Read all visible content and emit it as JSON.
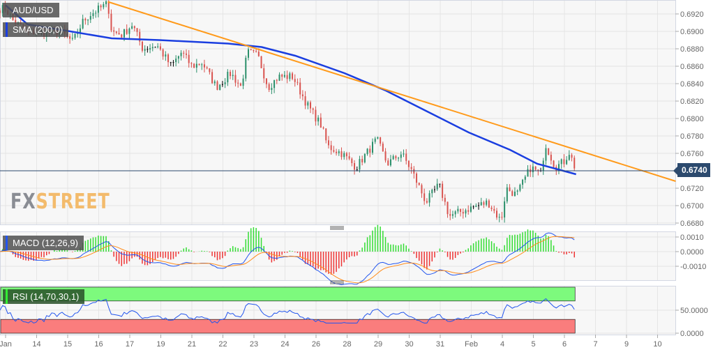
{
  "symbol": "AUD/USD",
  "indicators": {
    "sma": "SMA (200,0)",
    "macd": "MACD (12,26,9)",
    "rsi": "RSI (14,70,30,1)"
  },
  "logo": {
    "fx": "FX",
    "street": "STREET"
  },
  "current_price": "0.6740",
  "colors": {
    "up": "#2a8f6a",
    "down": "#d9534f",
    "sma": "#1a3ee0",
    "trendline": "#ff9a1a",
    "macd": "#2255ee",
    "signal": "#ff8c1a",
    "hist_up": "#33dd33",
    "hist_down": "#ee3333",
    "rsi": "#2255ee",
    "overbought": "#7dfa7d",
    "oversold": "#fa7d7d",
    "price_line": "#2c4a6e"
  },
  "chart_data": {
    "type": "candlestick",
    "x_ticks": [
      "Jan",
      "14",
      "15",
      "16",
      "17",
      "19",
      "21",
      "22",
      "23",
      "24",
      "26",
      "28",
      "29",
      "30",
      "31",
      "Feb",
      "4",
      "5",
      "6",
      "7",
      "9",
      "10"
    ],
    "x_tick_dates": [
      "Jan 13",
      "Jan 14",
      "Jan 15",
      "Jan 16",
      "Jan 17",
      "Jan 19",
      "Jan 21",
      "Jan 22",
      "Jan 23",
      "Jan 24",
      "Jan 26",
      "Jan 28",
      "Jan 29",
      "Jan 30",
      "Jan 31",
      "Feb 1",
      "Feb 4",
      "Feb 5",
      "Feb 6",
      "Feb 7",
      "Feb 9",
      "Feb 10"
    ],
    "price_axis": {
      "ticks": [
        "0.6920",
        "0.6900",
        "0.6880",
        "0.6860",
        "0.6840",
        "0.6820",
        "0.6800",
        "0.6780",
        "0.6760",
        "0.6740",
        "0.6720",
        "0.6700",
        "0.6680"
      ],
      "range": [
        0.6675,
        0.6936
      ]
    },
    "price_path": [
      [
        "Jan 13 00:00",
        0.6926
      ],
      [
        "Jan 13 06:00",
        0.6912
      ],
      [
        "Jan 13 17:00",
        0.69
      ],
      [
        "Jan 14 04:00",
        0.6898
      ],
      [
        "Jan 14 18:00",
        0.69
      ],
      [
        "Jan 15 04:00",
        0.6888
      ],
      [
        "Jan 15 12:00",
        0.6912
      ],
      [
        "Jan 15 18:00",
        0.692
      ],
      [
        "Jan 16 07:00",
        0.6932
      ],
      [
        "Jan 16 10:00",
        0.69
      ],
      [
        "Jan 16 18:00",
        0.6896
      ],
      [
        "Jan 17 02:00",
        0.6908
      ],
      [
        "Jan 17 10:00",
        0.688
      ],
      [
        "Jan 17 21:00",
        0.6884
      ],
      [
        "Jan 19 08:00",
        0.686
      ],
      [
        "Jan 19 16:00",
        0.6876
      ],
      [
        "Jan 21 00:00",
        0.686
      ],
      [
        "Jan 21 08:00",
        0.6864
      ],
      [
        "Jan 21 19:00",
        0.6836
      ],
      [
        "Jan 22 06:00",
        0.6852
      ],
      [
        "Jan 22 14:00",
        0.6836
      ],
      [
        "Jan 22 19:00",
        0.6876
      ],
      [
        "Jan 23 03:00",
        0.6872
      ],
      [
        "Jan 23 11:00",
        0.6836
      ],
      [
        "Jan 23 19:00",
        0.6848
      ],
      [
        "Jan 24 06:00",
        0.6848
      ],
      [
        "Jan 24 17:00",
        0.6816
      ],
      [
        "Jan 26 04:00",
        0.6792
      ],
      [
        "Jan 26 09:00",
        0.6768
      ],
      [
        "Jan 26 20:00",
        0.676
      ],
      [
        "Jan 28 07:00",
        0.6744
      ],
      [
        "Jan 28 15:00",
        0.676
      ],
      [
        "Jan 28 23:00",
        0.6776
      ],
      [
        "Jan 29 07:00",
        0.6748
      ],
      [
        "Jan 29 18:00",
        0.676
      ],
      [
        "Jan 30 02:00",
        0.674
      ],
      [
        "Jan 30 13:00",
        0.6704
      ],
      [
        "Jan 30 23:00",
        0.6724
      ],
      [
        "Jan 31 07:00",
        0.6688
      ],
      [
        "Jan 31 21:00",
        0.6696
      ],
      [
        "Feb 1 13:00",
        0.6704
      ],
      [
        "Feb 1 23:00",
        0.6682
      ],
      [
        "Feb 4 03:00",
        0.672
      ],
      [
        "Feb 4 11:00",
        0.6712
      ],
      [
        "Feb 4 22:00",
        0.6744
      ],
      [
        "Feb 5 06:00",
        0.6736
      ],
      [
        "Feb 5 09:00",
        0.6772
      ],
      [
        "Feb 5 17:00",
        0.6744
      ],
      [
        "Feb 6 01:00",
        0.6752
      ],
      [
        "Feb 6 03:00",
        0.6764
      ],
      [
        "Feb 6 09:00",
        0.674
      ]
    ],
    "sma_200": [
      [
        "Jan 13 00:00",
        0.693
      ],
      [
        "Jan 13 17:00",
        0.6908
      ],
      [
        "Jan 15 02:00",
        0.69
      ],
      [
        "Jan 16 10:00",
        0.6892
      ],
      [
        "Jan 17 23:00",
        0.689
      ],
      [
        "Jan 22 04:00",
        0.6886
      ],
      [
        "Jan 23 06:00",
        0.6882
      ],
      [
        "Jan 24 08:00",
        0.6872
      ],
      [
        "Jan 26 22:00",
        0.6852
      ],
      [
        "Jan 29 06:00",
        0.6832
      ],
      [
        "Jan 30 14:00",
        0.6808
      ],
      [
        "Jan 31 22:00",
        0.6784
      ],
      [
        "Feb 4 06:00",
        0.6764
      ],
      [
        "Feb 5 03:00",
        0.6748
      ],
      [
        "Feb 6 09:00",
        0.6736
      ]
    ],
    "trendline": [
      [
        "Jan 16 07:00",
        0.6934
      ],
      [
        "Feb 10 14:00",
        0.6728
      ]
    ],
    "horizontal_line": 0.674,
    "macd_axis": {
      "ticks": [
        "0.0010",
        "0.0000",
        "-0.0010"
      ],
      "range": [
        -0.0019,
        0.0014
      ]
    },
    "rsi_axis": {
      "ticks": [
        "50.0000",
        "0.0000"
      ],
      "range": [
        0,
        100
      ],
      "overbought": 70,
      "oversold": 30
    }
  }
}
